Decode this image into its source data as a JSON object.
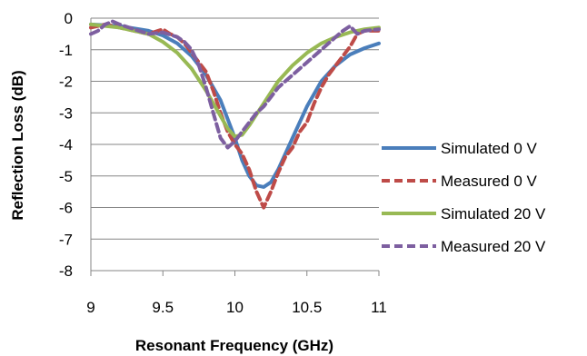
{
  "chart_data": {
    "type": "line",
    "xlabel": "Resonant Frequency (GHz)",
    "ylabel": "Reflection Loss (dB)",
    "xlim": [
      9,
      11
    ],
    "ylim": [
      -8,
      0
    ],
    "xticks": [
      "9",
      "9.5",
      "10",
      "10.5",
      "11"
    ],
    "xtick_values": [
      9,
      9.5,
      10,
      10.5,
      11
    ],
    "yticks": [
      "0",
      "-1",
      "-2",
      "-3",
      "-4",
      "-5",
      "-6",
      "-7",
      "-8"
    ],
    "ytick_values": [
      0,
      -1,
      -2,
      -3,
      -4,
      -5,
      -6,
      -7,
      -8
    ],
    "grid": "horizontal",
    "legend_position": "right",
    "series": [
      {
        "name": "Simulated 0 V",
        "color": "#4a7ebb",
        "dash": "solid",
        "x": [
          9,
          9.2,
          9.4,
          9.5,
          9.6,
          9.7,
          9.8,
          9.9,
          10.0,
          10.05,
          10.1,
          10.15,
          10.2,
          10.25,
          10.3,
          10.4,
          10.5,
          10.6,
          10.7,
          10.8,
          10.9,
          11.0
        ],
        "y": [
          -0.2,
          -0.25,
          -0.4,
          -0.55,
          -0.8,
          -1.2,
          -1.8,
          -2.6,
          -3.8,
          -4.5,
          -5.0,
          -5.3,
          -5.35,
          -5.2,
          -4.8,
          -3.8,
          -2.8,
          -2.0,
          -1.5,
          -1.15,
          -0.95,
          -0.8
        ]
      },
      {
        "name": "Measured 0 V",
        "color": "#be4b48",
        "dash": "dashed",
        "x": [
          9,
          9.1,
          9.2,
          9.3,
          9.4,
          9.5,
          9.55,
          9.6,
          9.65,
          9.7,
          9.75,
          9.8,
          9.85,
          9.9,
          9.95,
          10.0,
          10.05,
          10.1,
          10.15,
          10.2,
          10.25,
          10.3,
          10.35,
          10.4,
          10.45,
          10.5,
          10.55,
          10.6,
          10.65,
          10.7,
          10.75,
          10.8,
          10.85,
          10.9,
          11.0
        ],
        "y": [
          -0.3,
          -0.2,
          -0.3,
          -0.4,
          -0.5,
          -0.35,
          -0.5,
          -0.6,
          -0.8,
          -1.1,
          -1.4,
          -1.7,
          -2.3,
          -3.0,
          -3.6,
          -4.0,
          -4.3,
          -4.8,
          -5.5,
          -6.0,
          -5.5,
          -4.9,
          -4.4,
          -4.1,
          -3.6,
          -3.3,
          -2.7,
          -2.2,
          -1.8,
          -1.5,
          -1.2,
          -0.9,
          -0.5,
          -0.4,
          -0.4
        ]
      },
      {
        "name": "Simulated 20 V",
        "color": "#98b954",
        "dash": "solid",
        "x": [
          9,
          9.2,
          9.4,
          9.5,
          9.6,
          9.7,
          9.8,
          9.9,
          9.95,
          10.0,
          10.05,
          10.1,
          10.2,
          10.3,
          10.4,
          10.5,
          10.6,
          10.7,
          10.8,
          10.9,
          11.0
        ],
        "y": [
          -0.2,
          -0.3,
          -0.5,
          -0.75,
          -1.1,
          -1.6,
          -2.3,
          -3.1,
          -3.5,
          -3.75,
          -3.7,
          -3.4,
          -2.7,
          -2.0,
          -1.5,
          -1.1,
          -0.8,
          -0.6,
          -0.45,
          -0.35,
          -0.3
        ]
      },
      {
        "name": "Measured 20 V",
        "color": "#7d5fa0",
        "dash": "dashed",
        "x": [
          9,
          9.05,
          9.1,
          9.15,
          9.2,
          9.3,
          9.4,
          9.5,
          9.6,
          9.65,
          9.7,
          9.75,
          9.8,
          9.85,
          9.9,
          9.95,
          10.0,
          10.05,
          10.1,
          10.15,
          10.2,
          10.25,
          10.3,
          10.35,
          10.4,
          10.45,
          10.5,
          10.55,
          10.6,
          10.65,
          10.7,
          10.75,
          10.8,
          10.85,
          10.9,
          11.0
        ],
        "y": [
          -0.5,
          -0.4,
          -0.2,
          -0.1,
          -0.2,
          -0.35,
          -0.5,
          -0.45,
          -0.6,
          -0.75,
          -1.0,
          -1.5,
          -2.2,
          -3.0,
          -3.8,
          -4.1,
          -3.9,
          -3.6,
          -3.3,
          -3.0,
          -2.8,
          -2.5,
          -2.2,
          -2.0,
          -1.8,
          -1.6,
          -1.4,
          -1.2,
          -1.0,
          -0.8,
          -0.6,
          -0.4,
          -0.25,
          -0.5,
          -0.4,
          -0.35
        ]
      }
    ]
  }
}
